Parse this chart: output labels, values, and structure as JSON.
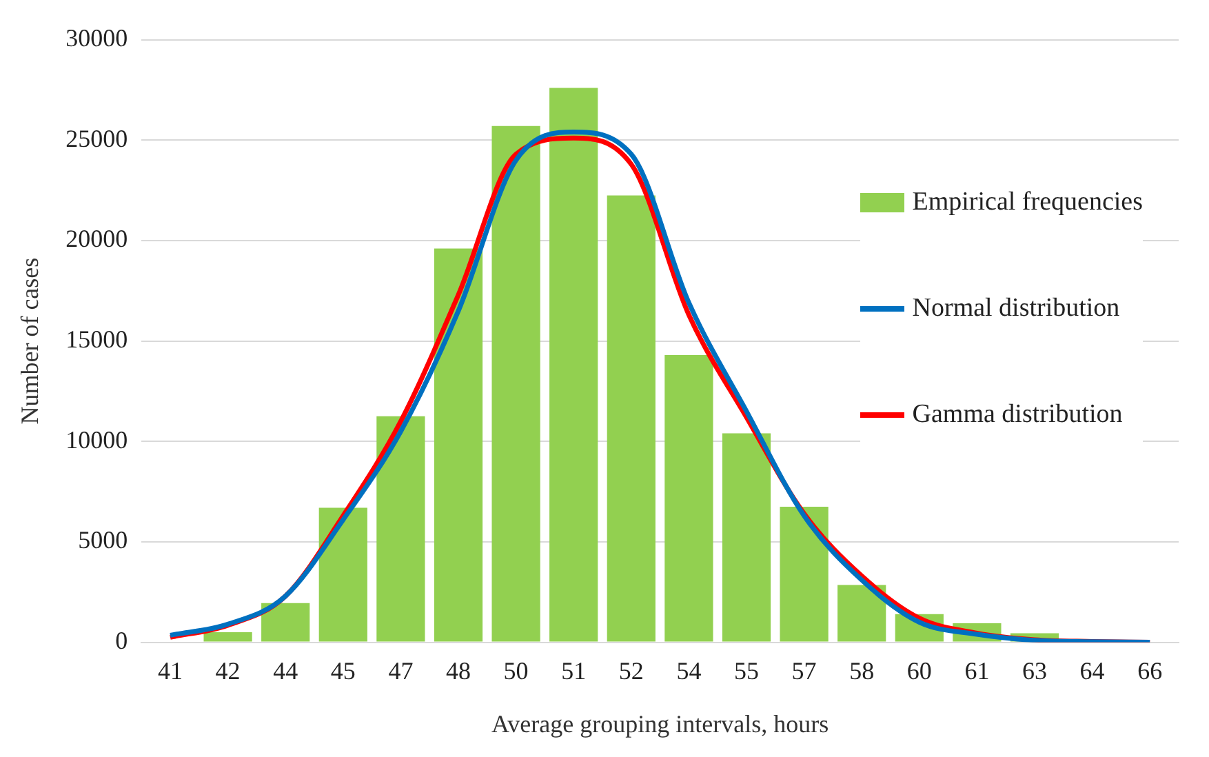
{
  "chart_data": {
    "type": "bar",
    "xlabel": "Average grouping intervals, hours",
    "ylabel": "Number of cases",
    "categories": [
      "41",
      "42",
      "44",
      "45",
      "47",
      "48",
      "50",
      "51",
      "52",
      "54",
      "55",
      "57",
      "58",
      "60",
      "61",
      "63",
      "64",
      "66"
    ],
    "series": [
      {
        "name": "Empirical frequencies",
        "color": "#92d050",
        "values": [
          null,
          500,
          1950,
          6700,
          11250,
          19600,
          25700,
          27600,
          22250,
          14300,
          10400,
          6750,
          2850,
          1400,
          950,
          450,
          null,
          null
        ]
      },
      {
        "name": "Normal distribution",
        "type": "line",
        "color": "#0070c0",
        "values": [
          350,
          900,
          2300,
          6100,
          10500,
          16500,
          24000,
          25400,
          24300,
          16900,
          11500,
          6300,
          3100,
          1000,
          400,
          100,
          30,
          0
        ]
      },
      {
        "name": "Gamma distribution",
        "type": "line",
        "color": "#ff0000",
        "values": [
          250,
          850,
          2300,
          6300,
          11000,
          17300,
          24300,
          25100,
          23800,
          16300,
          11200,
          6400,
          3300,
          1200,
          450,
          120,
          40,
          0
        ]
      }
    ],
    "ylim": [
      0,
      30000
    ],
    "yticks": [
      0,
      5000,
      10000,
      15000,
      20000,
      25000,
      30000
    ],
    "grid": "y",
    "legend": "top right",
    "marker": "none",
    "line_style": "solid"
  }
}
